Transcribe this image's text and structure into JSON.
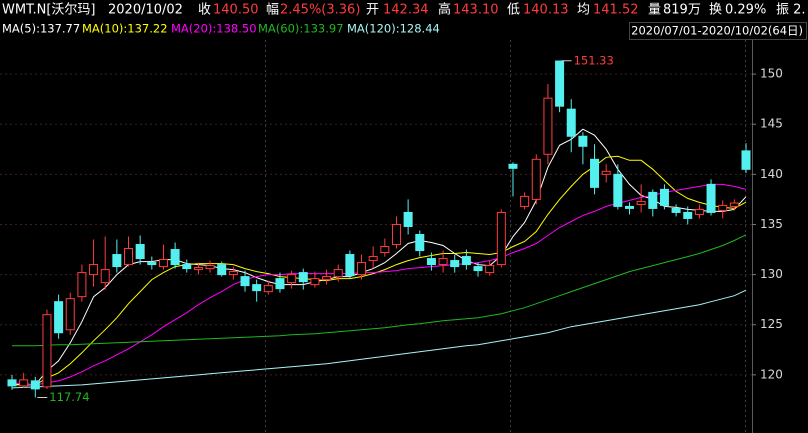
{
  "chart_data": {
    "type": "candlestick",
    "header": [
      {
        "text": "WMT.N[沃尔玛]",
        "color": "#ffffff"
      },
      {
        "text": "2020/10/02",
        "color": "#ffffff"
      },
      {
        "text": "收",
        "color": "#ffffff"
      },
      {
        "text": "140.50",
        "color": "#ff3c3c"
      },
      {
        "text": "幅",
        "color": "#ffffff"
      },
      {
        "text": "2.45%(3.36)",
        "color": "#ff3c3c"
      },
      {
        "text": "开",
        "color": "#ffffff"
      },
      {
        "text": "142.34",
        "color": "#ff3c3c"
      },
      {
        "text": "高",
        "color": "#ffffff"
      },
      {
        "text": "143.10",
        "color": "#ff3c3c"
      },
      {
        "text": "低",
        "color": "#ffffff"
      },
      {
        "text": "140.13",
        "color": "#ff3c3c"
      },
      {
        "text": "均",
        "color": "#ffffff"
      },
      {
        "text": "141.52",
        "color": "#ff3c3c"
      },
      {
        "text": "量",
        "color": "#ffffff"
      },
      {
        "text": "819万",
        "color": "#ffffff"
      },
      {
        "text": "换",
        "color": "#ffffff"
      },
      {
        "text": "0.29%",
        "color": "#ffffff"
      },
      {
        "text": "振 2.",
        "color": "#ffffff"
      }
    ],
    "range_label": "2020/07/01-2020/10/02(64日)",
    "up_color": "#ff3c3c",
    "down_color": "#54f0f0",
    "candles": {
      "open": [
        119.5,
        118.9,
        119.4,
        118.8,
        127.3,
        124.5,
        127.8,
        130.0,
        129.2,
        132.0,
        131.0,
        133.0,
        131.2,
        130.8,
        132.5,
        131.0,
        130.5,
        130.6,
        131.0,
        130.0,
        129.8,
        129.0,
        128.3,
        129.6,
        129.2,
        130.2,
        129.0,
        129.5,
        129.8,
        132.0,
        130.0,
        131.4,
        132.2,
        133.0,
        136.2,
        134.0,
        131.6,
        131.0,
        131.4,
        131.8,
        130.8,
        130.2,
        131.0,
        141.0,
        136.8,
        137.5,
        142.0,
        151.3,
        146.5,
        143.8,
        141.5,
        140.0,
        140.0,
        136.8,
        137.0,
        138.2,
        138.5,
        136.6,
        136.2,
        136.0,
        139.0,
        136.4,
        136.8,
        142.34
      ],
      "high": [
        120.0,
        120.2,
        119.8,
        126.5,
        128.0,
        128.2,
        131.0,
        133.5,
        133.8,
        133.5,
        133.8,
        133.9,
        131.8,
        133.0,
        133.2,
        131.5,
        131.2,
        131.4,
        131.3,
        130.8,
        130.4,
        129.5,
        129.4,
        130.2,
        130.4,
        130.6,
        130.3,
        130.5,
        131.0,
        132.4,
        132.0,
        132.8,
        133.6,
        135.8,
        137.5,
        134.4,
        132.2,
        132.4,
        132.0,
        132.5,
        131.2,
        131.4,
        136.5,
        141.2,
        138.2,
        142.0,
        149.0,
        151.33,
        147.5,
        144.2,
        143.0,
        141.0,
        141.0,
        137.2,
        139.0,
        138.5,
        139.0,
        137.0,
        136.8,
        137.0,
        139.5,
        137.4,
        137.5,
        143.1
      ],
      "low": [
        118.5,
        118.7,
        117.74,
        118.6,
        123.6,
        124.0,
        127.3,
        128.8,
        128.5,
        130.2,
        130.8,
        131.0,
        130.5,
        130.5,
        130.6,
        130.2,
        130.0,
        130.2,
        129.8,
        129.5,
        128.3,
        127.3,
        128.0,
        128.2,
        128.6,
        128.5,
        128.7,
        129.0,
        129.3,
        129.6,
        129.5,
        130.6,
        131.8,
        132.6,
        134.0,
        131.8,
        130.4,
        130.2,
        130.2,
        130.5,
        129.8,
        129.9,
        130.7,
        137.8,
        136.5,
        137.0,
        141.0,
        146.2,
        142.2,
        141.0,
        138.0,
        139.2,
        136.5,
        136.0,
        136.2,
        135.8,
        136.5,
        135.8,
        135.0,
        135.6,
        135.9,
        135.6,
        136.4,
        140.13
      ],
      "close": [
        118.9,
        119.5,
        118.6,
        126.0,
        124.2,
        127.6,
        130.2,
        131.0,
        130.5,
        130.8,
        132.6,
        131.6,
        131.0,
        131.5,
        131.0,
        130.6,
        130.7,
        130.9,
        130.0,
        130.3,
        128.9,
        128.4,
        128.9,
        128.6,
        130.0,
        129.3,
        129.6,
        129.8,
        130.5,
        129.9,
        131.2,
        131.8,
        132.8,
        135.0,
        134.8,
        132.4,
        131.0,
        131.6,
        130.8,
        131.0,
        130.4,
        130.9,
        136.2,
        140.6,
        137.8,
        141.5,
        147.6,
        146.8,
        143.8,
        142.8,
        138.7,
        140.3,
        136.8,
        136.6,
        137.3,
        136.6,
        136.9,
        136.2,
        135.6,
        136.5,
        136.2,
        136.9,
        137.14,
        140.5
      ]
    },
    "series": [
      {
        "name": "MA(5):137.77",
        "color": "#ffffff",
        "values": [
          119.0,
          119.1,
          119.0,
          120.4,
          121.4,
          123.2,
          125.3,
          127.8,
          128.7,
          130.0,
          131.0,
          131.3,
          131.3,
          131.5,
          131.5,
          131.1,
          131.0,
          130.9,
          130.6,
          130.5,
          130.2,
          129.7,
          129.3,
          129.0,
          129.0,
          129.0,
          129.3,
          129.5,
          129.8,
          129.8,
          130.2,
          130.6,
          131.2,
          132.1,
          133.1,
          133.4,
          133.2,
          132.9,
          132.1,
          131.4,
          131.0,
          130.9,
          131.9,
          133.8,
          135.2,
          137.4,
          140.7,
          142.9,
          143.5,
          144.5,
          143.9,
          142.5,
          140.5,
          139.0,
          137.9,
          137.5,
          136.8,
          136.7,
          136.5,
          136.4,
          136.3,
          136.3,
          136.5,
          137.77
        ]
      },
      {
        "name": "MA(10):137.22",
        "color": "#ffff00",
        "values": [
          119.0,
          119.0,
          119.0,
          119.7,
          120.2,
          121.1,
          122.2,
          123.4,
          124.5,
          125.7,
          127.1,
          128.3,
          129.5,
          130.2,
          130.8,
          131.0,
          131.1,
          131.1,
          131.1,
          131.0,
          130.6,
          130.3,
          130.1,
          129.8,
          129.7,
          129.6,
          129.5,
          129.4,
          129.6,
          129.6,
          129.8,
          130.1,
          130.5,
          131.0,
          131.4,
          131.7,
          131.9,
          132.1,
          132.1,
          132.2,
          132.1,
          132.0,
          132.2,
          132.8,
          133.3,
          134.3,
          136.0,
          137.5,
          138.8,
          140.0,
          140.8,
          141.7,
          141.8,
          141.4,
          141.4,
          140.5,
          139.4,
          138.3,
          137.6,
          137.2,
          136.9,
          136.7,
          136.6,
          137.22
        ]
      },
      {
        "name": "MA(20):138.50",
        "color": "#ff00ff",
        "values": [
          119.2,
          119.1,
          119.0,
          119.2,
          119.4,
          119.8,
          120.3,
          120.9,
          121.4,
          122.0,
          122.6,
          123.3,
          124.0,
          124.8,
          125.5,
          126.2,
          127.0,
          127.7,
          128.3,
          129.0,
          129.5,
          129.8,
          130.0,
          130.0,
          130.1,
          130.1,
          130.1,
          130.1,
          130.1,
          130.1,
          130.2,
          130.2,
          130.3,
          130.4,
          130.6,
          130.7,
          130.8,
          130.9,
          131.0,
          131.1,
          131.2,
          131.4,
          131.7,
          132.2,
          132.6,
          133.1,
          133.9,
          134.7,
          135.3,
          135.9,
          136.3,
          136.8,
          137.1,
          137.4,
          137.7,
          137.9,
          138.2,
          138.4,
          138.6,
          138.8,
          139.0,
          139.0,
          138.8,
          138.5
        ]
      },
      {
        "name": "MA(60):133.97",
        "color": "#1fb81f",
        "values": [
          122.9,
          122.9,
          122.9,
          122.95,
          123.0,
          123.0,
          123.05,
          123.1,
          123.15,
          123.2,
          123.25,
          123.3,
          123.35,
          123.4,
          123.45,
          123.5,
          123.55,
          123.6,
          123.65,
          123.7,
          123.75,
          123.8,
          123.85,
          123.9,
          124.0,
          124.05,
          124.1,
          124.2,
          124.3,
          124.4,
          124.5,
          124.6,
          124.7,
          124.85,
          125.0,
          125.1,
          125.25,
          125.4,
          125.5,
          125.6,
          125.7,
          125.9,
          126.1,
          126.4,
          126.7,
          127.1,
          127.5,
          127.9,
          128.3,
          128.7,
          129.1,
          129.5,
          129.9,
          130.3,
          130.6,
          130.9,
          131.2,
          131.5,
          131.8,
          132.1,
          132.5,
          132.9,
          133.4,
          133.97
        ]
      },
      {
        "name": "MA(120):128.44",
        "color": "#a8f4f4",
        "values": [
          118.7,
          118.75,
          118.8,
          118.85,
          118.9,
          118.95,
          119.0,
          119.1,
          119.2,
          119.3,
          119.4,
          119.5,
          119.6,
          119.7,
          119.8,
          119.9,
          120.0,
          120.1,
          120.2,
          120.3,
          120.4,
          120.5,
          120.6,
          120.7,
          120.8,
          120.9,
          121.0,
          121.1,
          121.25,
          121.4,
          121.55,
          121.7,
          121.85,
          122.0,
          122.15,
          122.3,
          122.45,
          122.6,
          122.75,
          122.9,
          123.0,
          123.2,
          123.4,
          123.6,
          123.8,
          124.0,
          124.2,
          124.5,
          124.8,
          125.0,
          125.2,
          125.4,
          125.6,
          125.8,
          126.0,
          126.2,
          126.4,
          126.6,
          126.8,
          127.0,
          127.3,
          127.6,
          127.9,
          128.44
        ]
      }
    ],
    "annotations": [
      {
        "text": "151.33",
        "value": 151.33,
        "color": "#ff3c3c"
      },
      {
        "text": "117.74",
        "value": 117.74,
        "color": "#1fb81f"
      }
    ],
    "ylim": [
      114.2,
      153.4
    ],
    "yticks": [
      120,
      125,
      130,
      135,
      140,
      145,
      150
    ],
    "grid": true
  }
}
